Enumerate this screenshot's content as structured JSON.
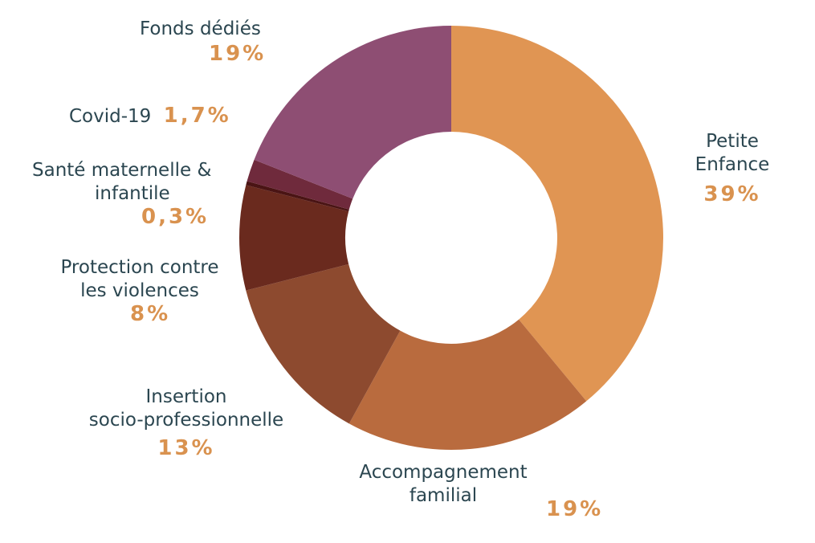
{
  "chart_data": {
    "type": "pie",
    "donut": true,
    "slices": [
      {
        "label_lines": [
          "Petite",
          "Enfance"
        ],
        "value": 39,
        "value_label": "39%",
        "color": "#e09553"
      },
      {
        "label_lines": [
          "Accompagnement",
          "familial"
        ],
        "value": 19,
        "value_label": "19%",
        "color": "#b96b3e"
      },
      {
        "label_lines": [
          "Insertion",
          "socio-professionnelle"
        ],
        "value": 13,
        "value_label": "13%",
        "color": "#8d4a2f"
      },
      {
        "label_lines": [
          "Protection contre",
          "les violences"
        ],
        "value": 8,
        "value_label": "8%",
        "color": "#6a2a1e"
      },
      {
        "label_lines": [
          "Santé maternelle &",
          "infantile"
        ],
        "value": 0.3,
        "value_label": "0,3%",
        "color": "#4a1414"
      },
      {
        "label_lines": [
          "Covid-19"
        ],
        "value": 1.7,
        "value_label": "1,7%",
        "color": "#6f2a3c"
      },
      {
        "label_lines": [
          "Fonds dédiés"
        ],
        "value": 19,
        "value_label": "19%",
        "color": "#8e4e73"
      }
    ],
    "label_color": "#2b4650",
    "value_color": "#d9924f"
  }
}
